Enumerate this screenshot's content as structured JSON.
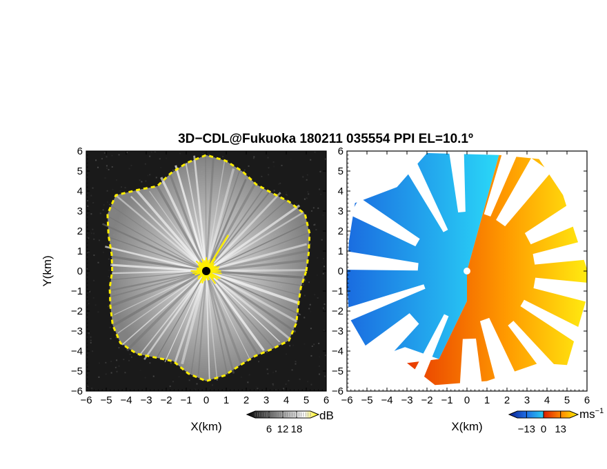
{
  "title": "3D−CDL@Fukuoka 180211 035554 PPI EL=10.1º",
  "chart_data": [
    {
      "type": "heatmap",
      "panel": "reflectivity",
      "xlabel": "X(km)",
      "ylabel": "Y(km)",
      "xlim": [
        -6,
        6
      ],
      "ylim": [
        -6,
        6
      ],
      "xticks": [
        -6,
        -5,
        -4,
        -3,
        -2,
        -1,
        0,
        1,
        2,
        3,
        4,
        5,
        6
      ],
      "yticks": [
        -6,
        -5,
        -4,
        -3,
        -2,
        -1,
        0,
        1,
        2,
        3,
        4,
        5,
        6
      ],
      "xtick_labels": [
        "−6",
        "−5",
        "−4",
        "−3",
        "−2",
        "−1",
        "0",
        "1",
        "2",
        "3",
        "4",
        "5",
        "6"
      ],
      "ytick_labels": [
        "−6",
        "−5",
        "−4",
        "−3",
        "−2",
        "−1",
        "0",
        "1",
        "2",
        "3",
        "4",
        "5",
        "6"
      ],
      "background_color": "#1a1a1a",
      "echo_color": "#d8d8d8",
      "edge_color": "#ffee00",
      "center_marker_color": "#000000",
      "colorbar": {
        "unit": "dB",
        "ticks": [
          6,
          12,
          18
        ],
        "tick_labels": [
          "6",
          "12",
          "18"
        ],
        "range": [
          0,
          24
        ],
        "colors": [
          "#000000",
          "#ffffff",
          "#ffee00"
        ]
      }
    },
    {
      "type": "heatmap",
      "panel": "radial_velocity",
      "xlabel": "X(km)",
      "ylabel": "",
      "xlim": [
        -6,
        6
      ],
      "ylim": [
        -6,
        6
      ],
      "xticks": [
        -6,
        -5,
        -4,
        -3,
        -2,
        -1,
        0,
        1,
        2,
        3,
        4,
        5,
        6
      ],
      "yticks": [
        -6,
        -5,
        -4,
        -3,
        -2,
        -1,
        0,
        1,
        2,
        3,
        4,
        5,
        6
      ],
      "xtick_labels": [
        "−6",
        "−5",
        "−4",
        "−3",
        "−2",
        "−1",
        "0",
        "1",
        "2",
        "3",
        "4",
        "5",
        "6"
      ],
      "ytick_labels": [
        "−6",
        "−5",
        "−4",
        "−3",
        "−2",
        "−1",
        "0",
        "1",
        "2",
        "3",
        "4",
        "5",
        "6"
      ],
      "center_marker_color": "#ffffff",
      "colorbar": {
        "unit": "ms−1",
        "unit_base": "ms",
        "unit_exp": "−1",
        "ticks": [
          -13,
          0,
          13
        ],
        "tick_labels": [
          "−13",
          "0",
          "13"
        ],
        "range": [
          -20,
          20
        ],
        "colors": [
          "#0a1e8c",
          "#1e6ee6",
          "#28c8f0",
          "#dd2200",
          "#ff8800",
          "#ffee00"
        ]
      }
    }
  ]
}
